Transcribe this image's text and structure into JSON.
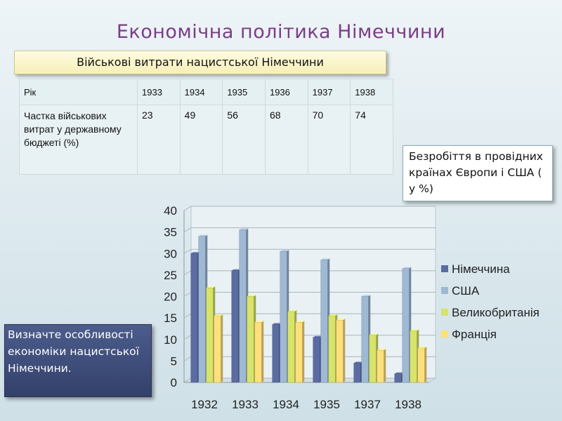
{
  "page": {
    "title": "Економічна політика Німеччини",
    "subtitle": "Військові витрати нацистської Німеччини"
  },
  "table": {
    "header": [
      "Рік",
      "1933",
      "1934",
      "1935",
      "1936",
      "1937",
      "1938"
    ],
    "row_label": "Частка військових витрат у державному бюджеті (%)",
    "row_values": [
      "23",
      "49",
      "56",
      "68",
      "70",
      "74"
    ]
  },
  "callouts": {
    "right": "Безробіття в провідних країнах Європи і США ( у %)",
    "left": "Визначте особливості економіки нацистської Німеччини."
  },
  "chart_data": {
    "type": "bar",
    "categories": [
      "1932",
      "1933",
      "1934",
      "1935",
      "1937",
      "1938"
    ],
    "series": [
      {
        "name": "Німеччина",
        "values": [
          30,
          26,
          13.5,
          10.5,
          4.5,
          2
        ],
        "color": "#5b6ca3"
      },
      {
        "name": "США",
        "values": [
          34,
          35.5,
          30.5,
          28.5,
          20,
          26.5
        ],
        "color": "#9fb8d3"
      },
      {
        "name": "Великобританія",
        "values": [
          22,
          20,
          16.5,
          15.5,
          11,
          12
        ],
        "color": "#d7e36a"
      },
      {
        "name": "Франція",
        "values": [
          15.5,
          14,
          14,
          14.5,
          7.5,
          8
        ],
        "color": "#fddf7c"
      }
    ],
    "yticks": [
      "0",
      "5",
      "10",
      "15",
      "20",
      "25",
      "30",
      "35",
      "40"
    ],
    "ylim": [
      0,
      40
    ],
    "legend_position": "right",
    "grid": true
  }
}
